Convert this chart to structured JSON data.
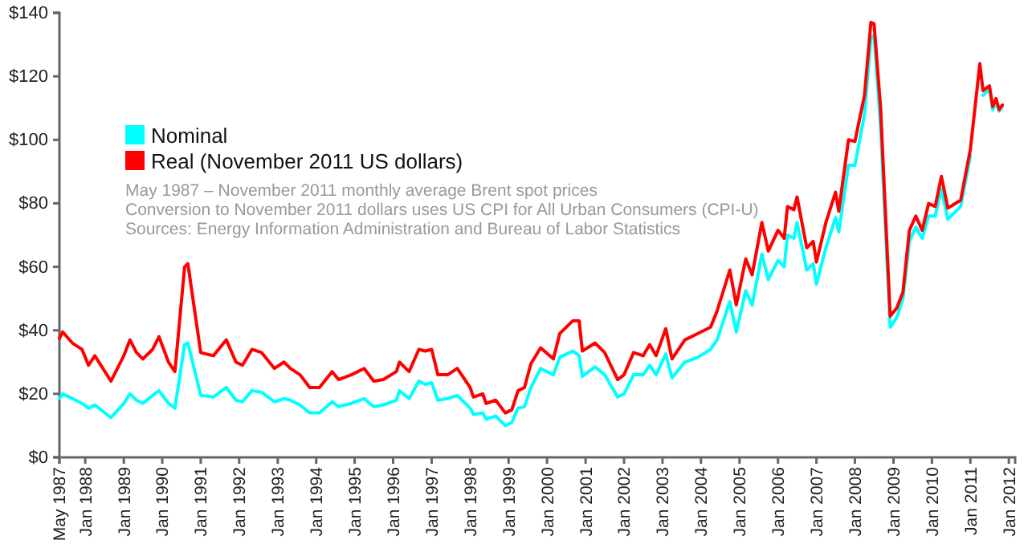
{
  "chart_data": {
    "type": "line",
    "x": [
      "1987-05",
      "1987-06",
      "1987-09",
      "1987-12",
      "1988-02",
      "1988-04",
      "1988-09",
      "1989-01",
      "1989-03",
      "1989-05",
      "1989-07",
      "1989-10",
      "1989-12",
      "1990-03",
      "1990-05",
      "1990-08",
      "1990-09",
      "1991-01",
      "1991-05",
      "1991-09",
      "1991-12",
      "1992-02",
      "1992-05",
      "1992-08",
      "1992-12",
      "1993-03",
      "1993-05",
      "1993-08",
      "1993-11",
      "1994-02",
      "1994-06",
      "1994-08",
      "1994-12",
      "1995-04",
      "1995-07",
      "1995-10",
      "1996-02",
      "1996-03",
      "1996-06",
      "1996-09",
      "1996-11",
      "1997-01",
      "1997-03",
      "1997-06",
      "1997-09",
      "1998-01",
      "1998-02",
      "1998-05",
      "1998-06",
      "1998-09",
      "1998-12",
      "1999-02",
      "1999-04",
      "1999-06",
      "1999-08",
      "1999-11",
      "2000-03",
      "2000-05",
      "2000-09",
      "2000-11",
      "2000-12",
      "2001-04",
      "2001-07",
      "2001-11",
      "2002-01",
      "2002-04",
      "2002-07",
      "2002-09",
      "2002-11",
      "2003-02",
      "2003-04",
      "2003-08",
      "2003-12",
      "2004-04",
      "2004-06",
      "2004-10",
      "2004-12",
      "2005-03",
      "2005-05",
      "2005-08",
      "2005-10",
      "2006-01",
      "2006-03",
      "2006-04",
      "2006-06",
      "2006-07",
      "2006-10",
      "2006-12",
      "2007-01",
      "2007-04",
      "2007-07",
      "2007-08",
      "2007-11",
      "2008-01",
      "2008-04",
      "2008-06",
      "2008-07",
      "2008-09",
      "2008-12",
      "2009-02",
      "2009-04",
      "2009-06",
      "2009-08",
      "2009-10",
      "2009-12",
      "2010-02",
      "2010-04",
      "2010-06",
      "2010-10",
      "2011-01",
      "2011-04",
      "2011-05",
      "2011-07",
      "2011-08",
      "2011-09",
      "2011-10",
      "2011-11"
    ],
    "series": [
      {
        "name": "Nominal",
        "color": "#00ffff",
        "values": [
          18.5,
          20,
          18.5,
          17,
          15.5,
          16.5,
          12.5,
          17,
          20,
          18,
          17,
          19.5,
          21,
          17,
          15.5,
          35.5,
          36,
          19.5,
          19,
          22,
          18,
          17.5,
          21,
          20.5,
          17.5,
          18.5,
          18,
          16.5,
          14,
          14,
          17.5,
          16,
          17,
          18.5,
          16,
          16.5,
          18,
          21,
          18.5,
          24,
          23,
          23.5,
          18,
          18.5,
          19.5,
          15.5,
          13.5,
          14,
          12,
          13,
          10,
          11,
          15.5,
          16,
          22,
          28,
          26,
          31.5,
          33.5,
          32,
          25.5,
          28.5,
          26,
          19,
          20,
          26,
          26,
          29,
          26,
          32.5,
          25,
          30,
          31.5,
          34,
          37,
          49,
          39.5,
          52.5,
          48,
          64,
          56,
          62,
          60,
          70,
          69,
          74,
          59,
          61,
          54.5,
          66,
          75.5,
          71,
          92,
          92,
          108,
          132,
          133,
          104,
          41,
          44,
          50,
          68,
          72.5,
          69,
          76,
          76,
          84.5,
          75,
          79,
          95,
          null,
          114,
          116,
          109.5,
          112,
          109,
          110.5
        ]
      },
      {
        "name": "Real (November 2011 US dollars)",
        "color": "#ff0000",
        "values": [
          37.5,
          39.5,
          36,
          34,
          29,
          32,
          24,
          32,
          37,
          33,
          31,
          34,
          38,
          30,
          27,
          60,
          61,
          33,
          32,
          37,
          30,
          29,
          34,
          33,
          28,
          30,
          28,
          26,
          22,
          22,
          27,
          24.5,
          26,
          28,
          24,
          24.5,
          27,
          30,
          27,
          34,
          33.5,
          34,
          26,
          26,
          28,
          22,
          19,
          20,
          17,
          18,
          14,
          15,
          21,
          22,
          29.5,
          34.5,
          31,
          39,
          43,
          43,
          33.5,
          36,
          33,
          24.5,
          26,
          33,
          32,
          35.5,
          32,
          40.5,
          31,
          37,
          39,
          41,
          46,
          59,
          48,
          62.5,
          57.5,
          74,
          65,
          71.5,
          69,
          79,
          78,
          82,
          66,
          68,
          61.5,
          74,
          83.5,
          77.5,
          100,
          99.5,
          114,
          137,
          136.5,
          110,
          44.5,
          47,
          52,
          71.5,
          76,
          71.5,
          80,
          79,
          88.5,
          78.5,
          81,
          97,
          124,
          115.5,
          117,
          110.5,
          113,
          109.5,
          111
        ]
      }
    ],
    "xlim": [
      "1987-05",
      "2012-03"
    ],
    "xticks": [
      {
        "value": "1987-05",
        "label": "May 1987"
      },
      {
        "value": "1988-01",
        "label": "Jan 1988"
      },
      {
        "value": "1989-01",
        "label": "Jan 1989"
      },
      {
        "value": "1990-01",
        "label": "Jan 1990"
      },
      {
        "value": "1991-01",
        "label": "Jan 1991"
      },
      {
        "value": "1992-01",
        "label": "Jan 1992"
      },
      {
        "value": "1993-01",
        "label": "Jan 1993"
      },
      {
        "value": "1994-01",
        "label": "Jan 1994"
      },
      {
        "value": "1995-01",
        "label": "Jan 1995"
      },
      {
        "value": "1996-01",
        "label": "Jan 1996"
      },
      {
        "value": "1997-01",
        "label": "Jan 1997"
      },
      {
        "value": "1998-01",
        "label": "Jan 1998"
      },
      {
        "value": "1999-01",
        "label": "Jan 1999"
      },
      {
        "value": "2000-01",
        "label": "Jan 2000"
      },
      {
        "value": "2001-01",
        "label": "Jan 2001"
      },
      {
        "value": "2002-01",
        "label": "Jan 2002"
      },
      {
        "value": "2003-01",
        "label": "Jan 2003"
      },
      {
        "value": "2004-01",
        "label": "Jan 2004"
      },
      {
        "value": "2005-01",
        "label": "Jan 2005"
      },
      {
        "value": "2006-01",
        "label": "Jan 2006"
      },
      {
        "value": "2007-01",
        "label": "Jan 2007"
      },
      {
        "value": "2008-01",
        "label": "Jan 2008"
      },
      {
        "value": "2009-01",
        "label": "Jan 2009"
      },
      {
        "value": "2010-01",
        "label": "Jan 2010"
      },
      {
        "value": "2011-01",
        "label": "Jan 2011"
      },
      {
        "value": "2012-01",
        "label": "Jan 2012"
      }
    ],
    "ylim": [
      0,
      140
    ],
    "yticks": [
      {
        "value": 0,
        "label": "$0"
      },
      {
        "value": 20,
        "label": "$20"
      },
      {
        "value": 40,
        "label": "$40"
      },
      {
        "value": 60,
        "label": "$60"
      },
      {
        "value": 80,
        "label": "$80"
      },
      {
        "value": 100,
        "label": "$100"
      },
      {
        "value": 120,
        "label": "$120"
      },
      {
        "value": 140,
        "label": "$140"
      }
    ],
    "grid": false,
    "legend": "top left",
    "marker": "none",
    "line_style": "solid",
    "annotations": [
      "May 1987 – November 2011 monthly average Brent spot prices",
      "Conversion to November 2011 dollars uses US CPI for All Urban Consumers (CPI-U)",
      "Sources: Energy Information Administration and Bureau of Labor Statistics"
    ]
  }
}
